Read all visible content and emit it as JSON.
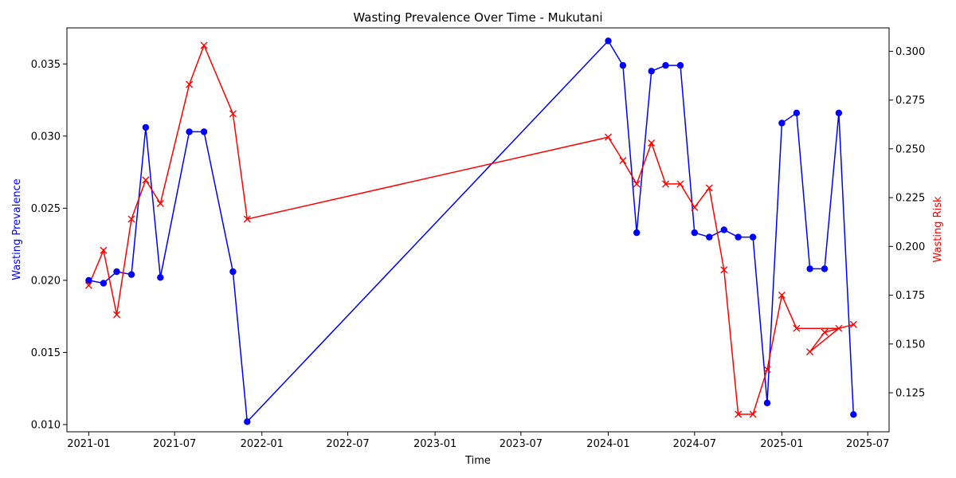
{
  "chart_data": {
    "type": "line",
    "title": "Wasting Prevalence Over Time - Mukutani",
    "xlabel": "Time",
    "ylabel": "Wasting Prevalence",
    "ylabel_right": "Wasting Risk",
    "x_ticks": [
      "2021-01",
      "2021-07",
      "2022-01",
      "2022-07",
      "2023-01",
      "2023-07",
      "2024-01",
      "2024-07",
      "2025-01",
      "2025-07"
    ],
    "y_ticks": [
      "0.010",
      "0.015",
      "0.020",
      "0.025",
      "0.030",
      "0.035"
    ],
    "y_right_ticks": [
      "0.125",
      "0.150",
      "0.175",
      "0.200",
      "0.225",
      "0.250",
      "0.275",
      "0.300"
    ],
    "xlim": [
      "2020-11-16",
      "2025-08-15"
    ],
    "ylim": [
      0.0095,
      0.0375
    ],
    "ylim_right": [
      0.105,
      0.312
    ],
    "grid": false,
    "x": [
      "2021-01-01",
      "2021-02-01",
      "2021-03-01",
      "2021-04-01",
      "2021-05-01",
      "2021-06-01",
      "2021-08-01",
      "2021-09-01",
      "2021-11-01",
      "2021-12-01",
      "2024-01-01",
      "2024-02-01",
      "2024-03-01",
      "2024-04-01",
      "2024-05-01",
      "2024-06-01",
      "2024-07-01",
      "2024-08-01",
      "2024-09-01",
      "2024-10-01",
      "2024-11-01",
      "2024-12-01",
      "2025-01-01",
      "2025-02-01",
      "2025-03-01",
      "2025-04-01",
      "2025-05-01",
      "2025-06-01"
    ],
    "series": [
      {
        "name": "Wasting Prevalence",
        "axis": "left",
        "color": "#0000ff",
        "marker": "circle",
        "values": [
          0.02,
          0.0198,
          0.0206,
          0.0204,
          0.0306,
          0.0202,
          0.0303,
          0.0303,
          0.0206,
          0.0102,
          0.0366,
          0.0349,
          0.0233,
          0.0345,
          0.0349,
          0.0349,
          0.0233,
          0.023,
          0.0235,
          0.023,
          0.023,
          0.0115,
          0.0309,
          0.0316,
          0.0208,
          0.0208,
          0.0316,
          0.0107
        ]
      },
      {
        "name": "Wasting Risk",
        "axis": "right",
        "color": "#ff0000",
        "marker": "x",
        "values": [
          0.18,
          0.198,
          0.165,
          0.214,
          0.234,
          0.222,
          0.283,
          0.303,
          0.268,
          0.214,
          0.256,
          0.244,
          0.232,
          0.253,
          0.232,
          0.232,
          0.22,
          0.23,
          0.188,
          0.114,
          0.114,
          0.137,
          0.175,
          0.158,
          0.146,
          0.156,
          0.158,
          0.16
        ]
      }
    ],
    "risk_order": [
      0,
      1,
      2,
      3,
      4,
      5,
      6,
      7,
      8,
      9,
      10,
      11,
      12,
      13,
      14,
      15,
      16,
      17,
      18,
      19,
      20,
      21,
      22,
      23,
      26,
      24,
      25,
      27
    ]
  }
}
